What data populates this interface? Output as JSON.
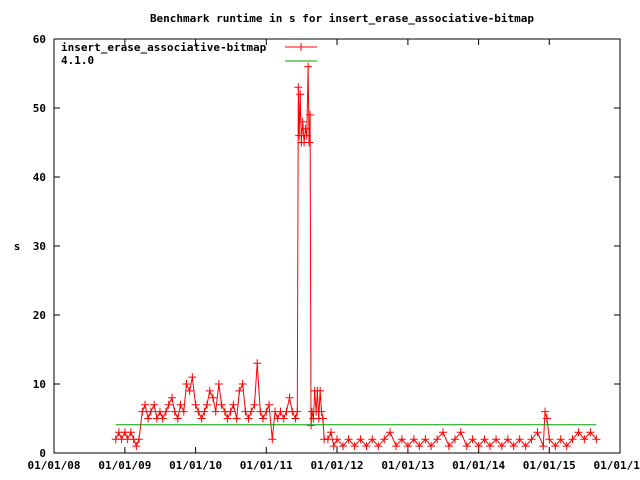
{
  "chart_data": {
    "type": "line",
    "title": "Benchmark runtime in s for insert_erase_associative-bitmap",
    "xlabel": "",
    "ylabel": "s",
    "x_axis_type": "date",
    "xlim": [
      "2008-01-01",
      "2016-01-01"
    ],
    "ylim": [
      0,
      60
    ],
    "y_ticks": [
      0,
      10,
      20,
      30,
      40,
      50,
      60
    ],
    "x_ticks": [
      "01/01/08",
      "01/01/09",
      "01/01/10",
      "01/01/11",
      "01/01/12",
      "01/01/13",
      "01/01/14",
      "01/01/15",
      "01/01/16"
    ],
    "x_tick_dates": [
      "2008-01-01",
      "2009-01-01",
      "2010-01-01",
      "2011-01-01",
      "2012-01-01",
      "2013-01-01",
      "2014-01-01",
      "2015-01-01",
      "2016-01-01"
    ],
    "grid": false,
    "legend_position": "top-left",
    "series": [
      {
        "name": "insert_erase_associative-bitmap",
        "color": "#ff0000",
        "style": "lines+crosses",
        "points": [
          [
            "2008-11-15",
            2
          ],
          [
            "2008-12-01",
            3
          ],
          [
            "2008-12-15",
            2
          ],
          [
            "2009-01-01",
            3
          ],
          [
            "2009-01-15",
            2
          ],
          [
            "2009-02-01",
            3
          ],
          [
            "2009-02-15",
            2
          ],
          [
            "2009-03-01",
            1
          ],
          [
            "2009-03-15",
            2
          ],
          [
            "2009-04-01",
            6
          ],
          [
            "2009-04-15",
            7
          ],
          [
            "2009-05-01",
            5
          ],
          [
            "2009-05-15",
            6
          ],
          [
            "2009-06-01",
            7
          ],
          [
            "2009-06-15",
            5
          ],
          [
            "2009-07-01",
            6
          ],
          [
            "2009-07-15",
            5
          ],
          [
            "2009-08-01",
            6
          ],
          [
            "2009-08-15",
            7
          ],
          [
            "2009-09-01",
            8
          ],
          [
            "2009-09-15",
            6
          ],
          [
            "2009-10-01",
            5
          ],
          [
            "2009-10-15",
            7
          ],
          [
            "2009-11-01",
            6
          ],
          [
            "2009-11-15",
            10
          ],
          [
            "2009-12-01",
            9
          ],
          [
            "2009-12-15",
            11
          ],
          [
            "2010-01-01",
            7
          ],
          [
            "2010-01-15",
            6
          ],
          [
            "2010-02-01",
            5
          ],
          [
            "2010-02-15",
            6
          ],
          [
            "2010-03-01",
            7
          ],
          [
            "2010-03-15",
            9
          ],
          [
            "2010-04-01",
            8
          ],
          [
            "2010-04-15",
            6
          ],
          [
            "2010-05-01",
            10
          ],
          [
            "2010-05-15",
            7
          ],
          [
            "2010-06-01",
            6
          ],
          [
            "2010-06-15",
            5
          ],
          [
            "2010-07-01",
            6
          ],
          [
            "2010-07-15",
            7
          ],
          [
            "2010-08-01",
            5
          ],
          [
            "2010-08-15",
            9
          ],
          [
            "2010-09-01",
            10
          ],
          [
            "2010-09-15",
            6
          ],
          [
            "2010-10-01",
            5
          ],
          [
            "2010-10-15",
            6
          ],
          [
            "2010-11-01",
            7
          ],
          [
            "2010-11-15",
            13
          ],
          [
            "2010-12-01",
            6
          ],
          [
            "2010-12-15",
            5
          ],
          [
            "2011-01-01",
            6
          ],
          [
            "2011-01-15",
            7
          ],
          [
            "2011-02-01",
            2
          ],
          [
            "2011-02-15",
            6
          ],
          [
            "2011-03-01",
            5
          ],
          [
            "2011-03-15",
            6
          ],
          [
            "2011-04-01",
            5
          ],
          [
            "2011-04-15",
            6
          ],
          [
            "2011-05-01",
            8
          ],
          [
            "2011-05-15",
            6
          ],
          [
            "2011-06-01",
            5
          ],
          [
            "2011-06-10",
            6
          ],
          [
            "2011-06-15",
            53
          ],
          [
            "2011-06-20",
            46
          ],
          [
            "2011-06-25",
            52
          ],
          [
            "2011-07-01",
            45
          ],
          [
            "2011-07-08",
            48
          ],
          [
            "2011-07-15",
            45
          ],
          [
            "2011-07-22",
            47
          ],
          [
            "2011-07-29",
            46
          ],
          [
            "2011-08-05",
            56
          ],
          [
            "2011-08-10",
            45
          ],
          [
            "2011-08-15",
            49
          ],
          [
            "2011-08-20",
            4
          ],
          [
            "2011-08-25",
            6
          ],
          [
            "2011-09-01",
            5
          ],
          [
            "2011-09-08",
            9
          ],
          [
            "2011-09-15",
            6
          ],
          [
            "2011-09-22",
            9
          ],
          [
            "2011-09-29",
            5
          ],
          [
            "2011-10-06",
            9
          ],
          [
            "2011-10-13",
            6
          ],
          [
            "2011-10-20",
            5
          ],
          [
            "2011-10-27",
            2
          ],
          [
            "2011-11-15",
            2
          ],
          [
            "2011-12-01",
            3
          ],
          [
            "2011-12-15",
            1
          ],
          [
            "2012-01-01",
            2
          ],
          [
            "2012-02-01",
            1
          ],
          [
            "2012-03-01",
            2
          ],
          [
            "2012-04-01",
            1
          ],
          [
            "2012-05-01",
            2
          ],
          [
            "2012-06-01",
            1
          ],
          [
            "2012-07-01",
            2
          ],
          [
            "2012-08-01",
            1
          ],
          [
            "2012-09-01",
            2
          ],
          [
            "2012-10-01",
            3
          ],
          [
            "2012-11-01",
            1
          ],
          [
            "2012-12-01",
            2
          ],
          [
            "2013-01-01",
            1
          ],
          [
            "2013-02-01",
            2
          ],
          [
            "2013-03-01",
            1
          ],
          [
            "2013-04-01",
            2
          ],
          [
            "2013-05-01",
            1
          ],
          [
            "2013-06-01",
            2
          ],
          [
            "2013-07-01",
            3
          ],
          [
            "2013-08-01",
            1
          ],
          [
            "2013-09-01",
            2
          ],
          [
            "2013-10-01",
            3
          ],
          [
            "2013-11-01",
            1
          ],
          [
            "2013-12-01",
            2
          ],
          [
            "2014-01-01",
            1
          ],
          [
            "2014-02-01",
            2
          ],
          [
            "2014-03-01",
            1
          ],
          [
            "2014-04-01",
            2
          ],
          [
            "2014-05-01",
            1
          ],
          [
            "2014-06-01",
            2
          ],
          [
            "2014-07-01",
            1
          ],
          [
            "2014-08-01",
            2
          ],
          [
            "2014-09-01",
            1
          ],
          [
            "2014-10-01",
            2
          ],
          [
            "2014-11-01",
            3
          ],
          [
            "2014-12-01",
            1
          ],
          [
            "2014-12-10",
            6
          ],
          [
            "2014-12-20",
            5
          ],
          [
            "2015-01-01",
            2
          ],
          [
            "2015-02-01",
            1
          ],
          [
            "2015-03-01",
            2
          ],
          [
            "2015-04-01",
            1
          ],
          [
            "2015-05-01",
            2
          ],
          [
            "2015-06-01",
            3
          ],
          [
            "2015-07-01",
            2
          ],
          [
            "2015-08-01",
            3
          ],
          [
            "2015-09-01",
            2
          ]
        ]
      },
      {
        "name": "4.1.0",
        "color": "#00a000",
        "style": "lines",
        "points": [
          [
            "2008-11-15",
            4.1
          ],
          [
            "2015-09-01",
            4.1
          ]
        ]
      }
    ]
  }
}
